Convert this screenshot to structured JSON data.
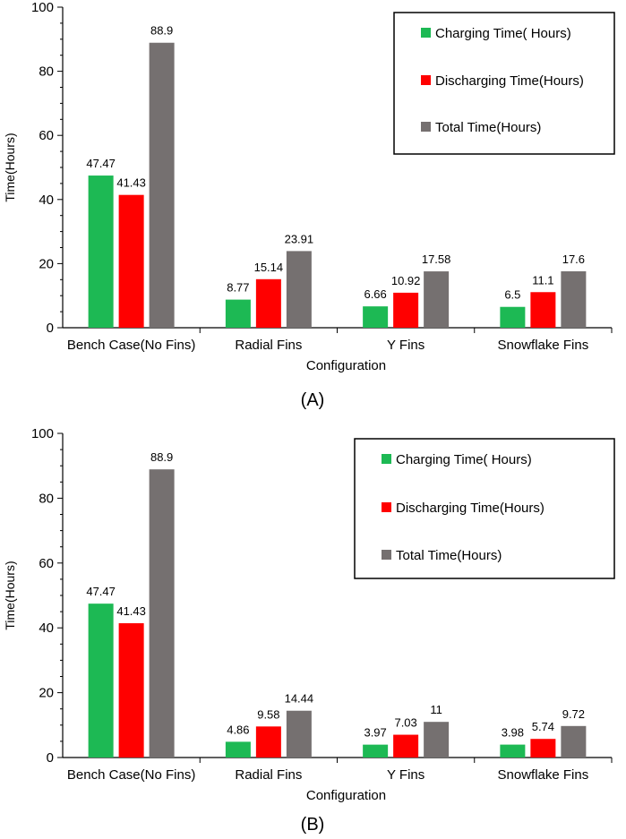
{
  "legend": {
    "entries": [
      {
        "label": "Charging Time( Hours)",
        "color": "#1db954"
      },
      {
        "label": "Discharging Time(Hours)",
        "color": "#ff0000"
      },
      {
        "label": "Total Time(Hours)",
        "color": "#757070"
      }
    ]
  },
  "chart_data": [
    {
      "type": "bar",
      "panel": "(A)",
      "xlabel": "Configuration",
      "ylabel": "Time(Hours)",
      "ylim": [
        0,
        100
      ],
      "yticks": [
        0,
        20,
        40,
        60,
        80,
        100
      ],
      "categories": [
        "Bench Case(No Fins)",
        "Radial Fins",
        "Y Fins",
        "Snowflake Fins"
      ],
      "series": [
        {
          "name": "Charging Time( Hours)",
          "color": "#1db954",
          "values": [
            47.47,
            8.77,
            6.66,
            6.5
          ],
          "labels": [
            "47.47",
            "8.77",
            "6.66",
            "6.5"
          ]
        },
        {
          "name": "Discharging Time(Hours)",
          "color": "#ff0000",
          "values": [
            41.43,
            15.14,
            10.92,
            11.1
          ],
          "labels": [
            "41.43",
            "15.14",
            "10.92",
            "11.1"
          ]
        },
        {
          "name": "Total Time(Hours)",
          "color": "#757070",
          "values": [
            88.9,
            23.91,
            17.58,
            17.6
          ],
          "labels": [
            "88.9",
            "23.91",
            "17.58",
            "17.6"
          ]
        }
      ]
    },
    {
      "type": "bar",
      "panel": "(B)",
      "xlabel": "Configuration",
      "ylabel": "Time(Hours)",
      "ylim": [
        0,
        100
      ],
      "yticks": [
        0,
        20,
        40,
        60,
        80,
        100
      ],
      "categories": [
        "Bench Case(No Fins)",
        "Radial Fins",
        "Y Fins",
        "Snowflake Fins"
      ],
      "series": [
        {
          "name": "Charging Time( Hours)",
          "color": "#1db954",
          "values": [
            47.47,
            4.86,
            3.97,
            3.98
          ],
          "labels": [
            "47.47",
            "4.86",
            "3.97",
            "3.98"
          ]
        },
        {
          "name": "Discharging Time(Hours)",
          "color": "#ff0000",
          "values": [
            41.43,
            9.58,
            7.03,
            5.74
          ],
          "labels": [
            "41.43",
            "9.58",
            "7.03",
            "5.74"
          ]
        },
        {
          "name": "Total Time(Hours)",
          "color": "#757070",
          "values": [
            88.9,
            14.44,
            11,
            9.72
          ],
          "labels": [
            "88.9",
            "14.44",
            "11",
            "9.72"
          ]
        }
      ]
    }
  ]
}
